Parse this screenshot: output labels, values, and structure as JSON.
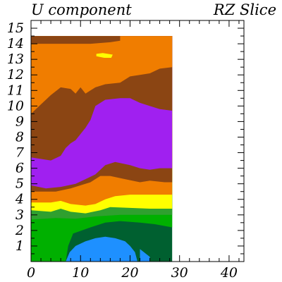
{
  "chart_data": {
    "type": "heatmap",
    "title_left": "U component",
    "title_right": "RZ Slice",
    "xlim": [
      0,
      43
    ],
    "ylim": [
      0,
      15.5
    ],
    "x_ticks": [
      0,
      10,
      20,
      30,
      40
    ],
    "y_ticks": [
      1,
      2,
      3,
      4,
      5,
      6,
      7,
      8,
      9,
      10,
      11,
      12,
      13,
      14,
      15
    ],
    "data_extent": {
      "x": [
        0,
        28.5
      ],
      "y": [
        0,
        14.5
      ]
    },
    "colors": {
      "brown": "#8b4513",
      "orange": "#f07d00",
      "purple": "#a020f0",
      "yellow": "#ffff00",
      "light_green": "#2fa02f",
      "green": "#00b000",
      "dark_green": "#006030",
      "blue": "#1e90ff"
    },
    "regions": [
      {
        "color": "dark_green",
        "points": [
          [
            0,
            0
          ],
          [
            28.5,
            0
          ],
          [
            28.5,
            14.5
          ],
          [
            0,
            14.5
          ]
        ]
      },
      {
        "color": "green",
        "points": [
          [
            0,
            0
          ],
          [
            7,
            0
          ],
          [
            7.5,
            1
          ],
          [
            8.5,
            1.8
          ],
          [
            12,
            2.2
          ],
          [
            15,
            2.5
          ],
          [
            18,
            2.6
          ],
          [
            22,
            2.5
          ],
          [
            25,
            2.4
          ],
          [
            28.5,
            2.2
          ],
          [
            28.5,
            14.5
          ],
          [
            0,
            14.5
          ]
        ]
      },
      {
        "color": "light_green",
        "points": [
          [
            0,
            2.7
          ],
          [
            5,
            2.8
          ],
          [
            9,
            2.75
          ],
          [
            13,
            2.9
          ],
          [
            18,
            3
          ],
          [
            22,
            3
          ],
          [
            28.5,
            3
          ],
          [
            28.5,
            14.5
          ],
          [
            0,
            14.5
          ]
        ]
      },
      {
        "color": "yellow",
        "points": [
          [
            0,
            3.3
          ],
          [
            4,
            3.2
          ],
          [
            6,
            3.4
          ],
          [
            8,
            3.2
          ],
          [
            11,
            3.1
          ],
          [
            14,
            3.3
          ],
          [
            16,
            3.5
          ],
          [
            20,
            3.45
          ],
          [
            24,
            3.4
          ],
          [
            28.5,
            3.4
          ],
          [
            28.5,
            14.5
          ],
          [
            0,
            14.5
          ]
        ]
      },
      {
        "color": "orange",
        "points": [
          [
            0,
            3.8
          ],
          [
            4,
            3.8
          ],
          [
            6,
            3.9
          ],
          [
            8,
            3.7
          ],
          [
            11,
            3.6
          ],
          [
            13,
            3.7
          ],
          [
            15,
            4.0
          ],
          [
            17,
            4.2
          ],
          [
            20,
            4.3
          ],
          [
            24,
            4.3
          ],
          [
            28.5,
            4.3
          ],
          [
            28.5,
            14.5
          ],
          [
            0,
            14.5
          ]
        ]
      },
      {
        "color": "brown",
        "points": [
          [
            0,
            4.5
          ],
          [
            5,
            4.5
          ],
          [
            8,
            4.7
          ],
          [
            10,
            4.9
          ],
          [
            12,
            5.1
          ],
          [
            14,
            5.5
          ],
          [
            16,
            5.5
          ],
          [
            19,
            5.3
          ],
          [
            22,
            5.1
          ],
          [
            24,
            5.2
          ],
          [
            27,
            5.1
          ],
          [
            28.5,
            5.1
          ],
          [
            28.5,
            14.5
          ],
          [
            0,
            14.5
          ]
        ]
      },
      {
        "color": "purple",
        "points": [
          [
            0,
            4.9
          ],
          [
            3,
            4.7
          ],
          [
            6,
            4.8
          ],
          [
            9,
            5.0
          ],
          [
            11,
            5.3
          ],
          [
            13,
            5.6
          ],
          [
            15,
            6.2
          ],
          [
            17,
            6.4
          ],
          [
            20,
            6.2
          ],
          [
            22,
            6
          ],
          [
            24,
            5.9
          ],
          [
            26,
            6
          ],
          [
            28.5,
            6.0
          ],
          [
            28.5,
            14.5
          ],
          [
            0,
            14.5
          ]
        ]
      },
      {
        "color": "brown",
        "points": [
          [
            0,
            6.7
          ],
          [
            4,
            6.5
          ],
          [
            6,
            6.8
          ],
          [
            7,
            7.3
          ],
          [
            8,
            7.6
          ],
          [
            9,
            7.8
          ],
          [
            10,
            8.2
          ],
          [
            11,
            8.6
          ],
          [
            12,
            9.1
          ],
          [
            13,
            10.0
          ],
          [
            15,
            10.4
          ],
          [
            18,
            10.5
          ],
          [
            20,
            10.5
          ],
          [
            22,
            10.2
          ],
          [
            24,
            10.0
          ],
          [
            26,
            9.8
          ],
          [
            28.5,
            9.7
          ],
          [
            28.5,
            14.5
          ],
          [
            0,
            14.5
          ]
        ]
      },
      {
        "color": "orange",
        "points": [
          [
            0,
            9.5
          ],
          [
            2,
            10.1
          ],
          [
            4,
            10.7
          ],
          [
            6,
            11.2
          ],
          [
            8,
            11.1
          ],
          [
            9,
            10.8
          ],
          [
            10,
            11.2
          ],
          [
            11,
            10.8
          ],
          [
            12,
            11.0
          ],
          [
            13,
            11.2
          ],
          [
            15,
            11.4
          ],
          [
            18,
            11.5
          ],
          [
            20,
            11.9
          ],
          [
            22,
            12.0
          ],
          [
            24,
            12.1
          ],
          [
            26,
            12.4
          ],
          [
            28.5,
            12.5
          ],
          [
            28.5,
            14.5
          ],
          [
            0,
            14.5
          ]
        ]
      },
      {
        "color": "brown",
        "points": [
          [
            0,
            14.0
          ],
          [
            8,
            14.0
          ],
          [
            12,
            14.0
          ],
          [
            16,
            14.1
          ],
          [
            18,
            14.2
          ],
          [
            18,
            14.5
          ],
          [
            0,
            14.5
          ]
        ]
      },
      {
        "color": "blue",
        "points": [
          [
            7,
            0
          ],
          [
            7.8,
            0.6
          ],
          [
            9,
            1.0
          ],
          [
            11,
            1.3
          ],
          [
            13,
            1.5
          ],
          [
            15,
            1.6
          ],
          [
            17,
            1.5
          ],
          [
            19,
            1.3
          ],
          [
            20,
            1.0
          ],
          [
            21,
            0.6
          ],
          [
            21.5,
            0
          ],
          [
            24,
            0
          ],
          [
            24,
            0.3
          ],
          [
            22,
            0.8
          ],
          [
            22,
            0
          ],
          [
            7,
            0
          ]
        ]
      },
      {
        "color": "yellow",
        "points": [
          [
            13.2,
            13.2
          ],
          [
            14.8,
            13.1
          ],
          [
            16.2,
            13.1
          ],
          [
            16.5,
            13.3
          ],
          [
            14.5,
            13.4
          ],
          [
            13.2,
            13.35
          ]
        ]
      }
    ]
  }
}
